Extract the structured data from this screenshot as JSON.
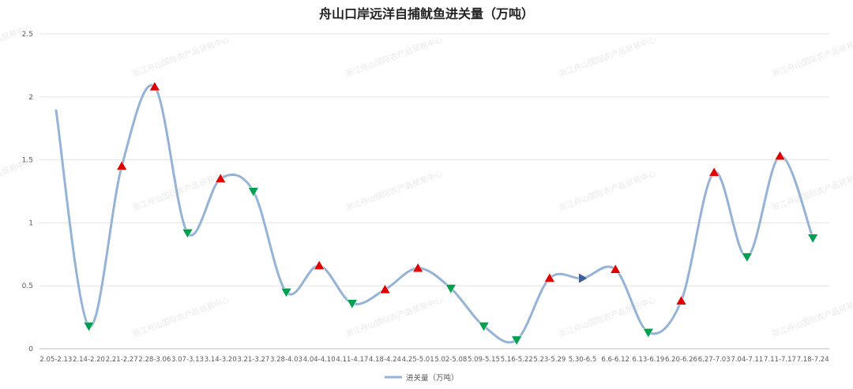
{
  "chart_data": {
    "type": "line",
    "title": "舟山口岸远洋自捕鱿鱼进关量（万吨）",
    "xlabel": "",
    "ylabel": "",
    "ylim": [
      0,
      2.5
    ],
    "yticks": [
      "0",
      "0.5",
      "1",
      "1.5",
      "2",
      "2.5"
    ],
    "grid": true,
    "legend_position": "bottom-center",
    "categories": [
      "2.05-2.13",
      "2.14-2.20",
      "2.21-2.27",
      "2.28-3.06",
      "3.07-3.13",
      "3.14-3.20",
      "3.21-3.27",
      "3.28-4.03",
      "4.04-4.10",
      "4.11-4.17",
      "4.18-4.24",
      "4.25-5.01",
      "5.02-5.08",
      "5.09-5.15",
      "5.16-5.22",
      "5.23-5.29",
      "5.30-6.5",
      "6.6-6.12",
      "6.13-6.19",
      "6.20-6.26",
      "6.27-7.03",
      "7.04-7.11",
      "7.11-7.17",
      "7.18-7.24"
    ],
    "series": [
      {
        "name": "进关量（万吨）",
        "color": "#95B3D7",
        "values": [
          1.9,
          0.18,
          1.45,
          2.08,
          0.92,
          1.35,
          1.25,
          0.45,
          0.66,
          0.36,
          0.47,
          0.64,
          0.48,
          0.18,
          0.07,
          0.56,
          0.56,
          0.63,
          0.13,
          0.38,
          1.4,
          0.73,
          1.53,
          0.88
        ],
        "markers": [
          "none",
          "down",
          "up",
          "up",
          "down",
          "up",
          "down",
          "down",
          "up",
          "down",
          "up",
          "up",
          "down",
          "down",
          "down",
          "up",
          "right",
          "up",
          "down",
          "up",
          "up",
          "down",
          "up",
          "down"
        ]
      }
    ],
    "marker_colors": {
      "up": "#E00000",
      "down": "#00A050",
      "right": "#3A5F9A"
    },
    "watermark": "浙江舟山国际农产品贸易中心"
  }
}
